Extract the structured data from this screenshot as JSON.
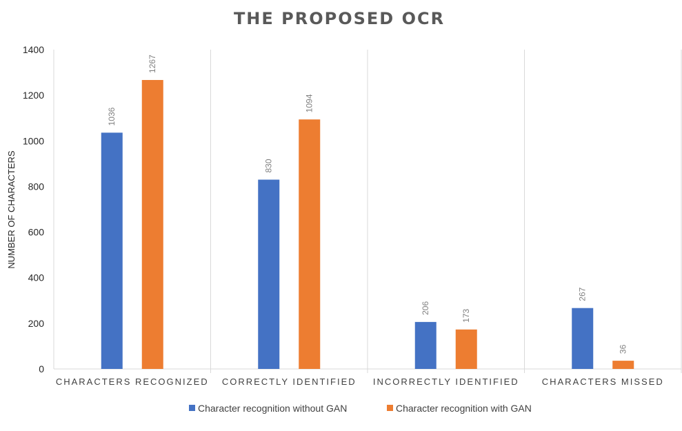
{
  "chart_data": {
    "type": "bar",
    "title": "THE PROPOSED OCR",
    "xlabel": "",
    "ylabel": "NUMBER OF CHARACTERS",
    "ylim": [
      0,
      1400
    ],
    "yticks": [
      0,
      200,
      400,
      600,
      800,
      1000,
      1200,
      1400
    ],
    "grid": false,
    "legend_position": "bottom",
    "categories": [
      "CHARACTERS RECOGNIZED",
      "CORRECTLY IDENTIFIED",
      "INCORRECTLY IDENTIFIED",
      "CHARACTERS MISSED"
    ],
    "series": [
      {
        "name": "Character recognition without GAN",
        "color": "#4472C4",
        "values": [
          1036,
          830,
          206,
          267
        ]
      },
      {
        "name": "Character recognition with GAN",
        "color": "#ED7D31",
        "values": [
          1267,
          1094,
          173,
          36
        ]
      }
    ]
  }
}
